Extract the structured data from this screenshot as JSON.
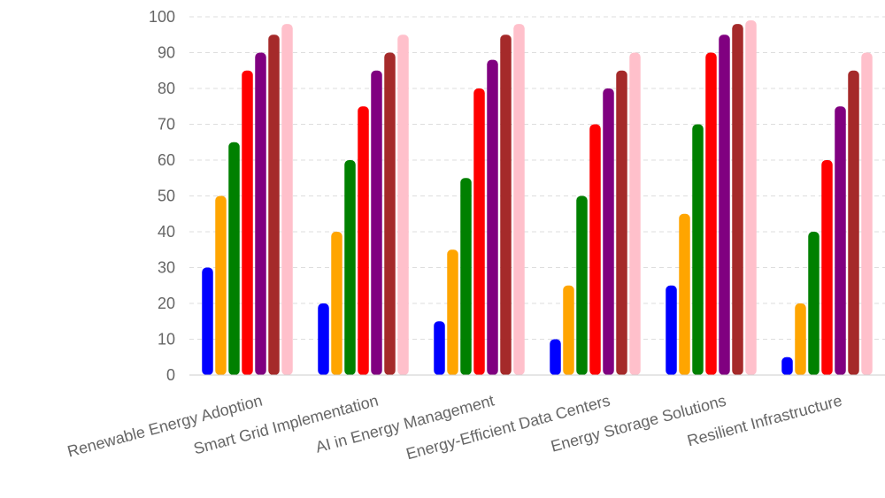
{
  "chart_data": {
    "type": "bar",
    "categories": [
      "Renewable Energy Adoption",
      "Smart Grid Implementation",
      "AI in Energy Management",
      "Energy-Efficient Data Centers",
      "Energy Storage Solutions",
      "Resilient Infrastructure"
    ],
    "series": [
      {
        "color": "#0000ff",
        "values": [
          30,
          20,
          15,
          10,
          25,
          5
        ]
      },
      {
        "color": "#ffa500",
        "values": [
          50,
          40,
          35,
          25,
          45,
          20
        ]
      },
      {
        "color": "#008000",
        "values": [
          65,
          60,
          55,
          50,
          70,
          40
        ]
      },
      {
        "color": "#ff0000",
        "values": [
          85,
          75,
          80,
          70,
          90,
          60
        ]
      },
      {
        "color": "#800080",
        "values": [
          90,
          85,
          88,
          80,
          95,
          75
        ]
      },
      {
        "color": "#a52a2a",
        "values": [
          95,
          90,
          95,
          85,
          98,
          85
        ]
      },
      {
        "color": "#ffc0cb",
        "values": [
          98,
          95,
          98,
          90,
          99,
          90
        ]
      }
    ],
    "ylim": [
      0,
      100
    ],
    "yticks": [
      0,
      10,
      20,
      30,
      40,
      50,
      60,
      70,
      80,
      90,
      100
    ],
    "grid": true,
    "legend": "none",
    "title": "",
    "xlabel": "",
    "ylabel": ""
  }
}
